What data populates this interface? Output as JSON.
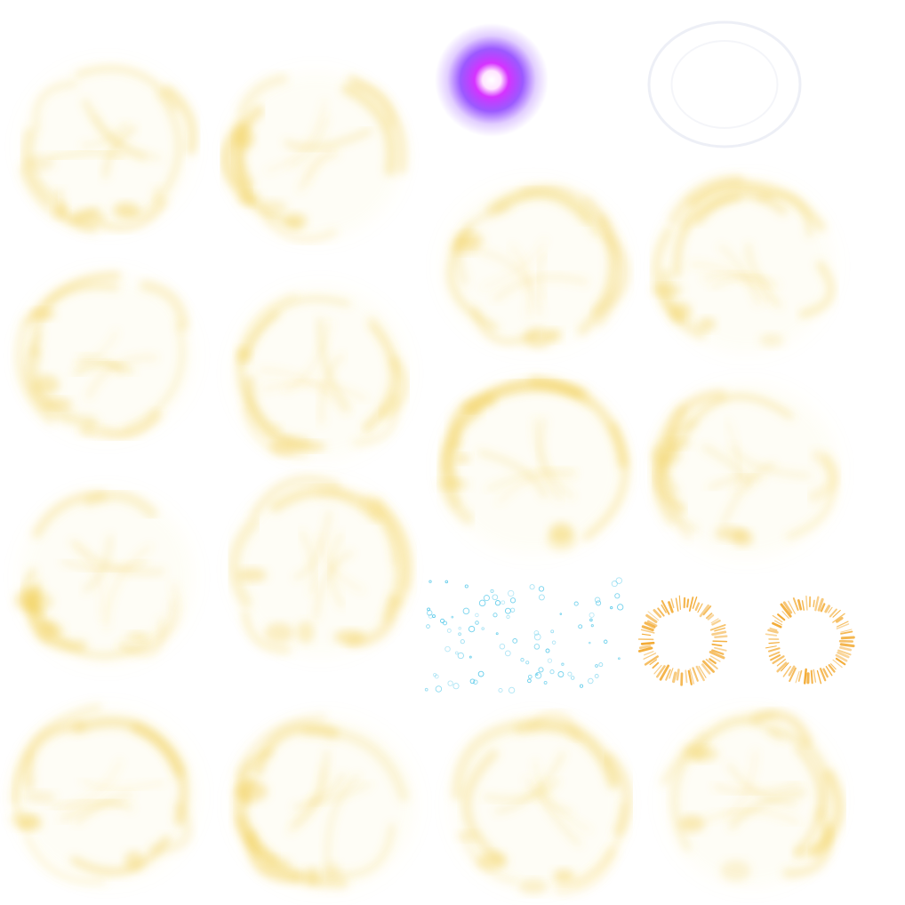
{
  "sheet": {
    "background": "#ffffff",
    "description_kind": "particle-texture-atlas"
  },
  "palette": {
    "smoke_gold": "#f2cf55",
    "smoke_gold_light": "#f8e08a",
    "orb_core": "#ffffff",
    "orb_mid": "#d633ff",
    "orb_outer": "#8a3cff",
    "ring_faint": "#e6e8f2",
    "bubble_blue": "#4fc6e8",
    "burst_orange": "#f2a629"
  },
  "icons": [
    {
      "id": "smoke-puff-icon",
      "kind": "smoke"
    },
    {
      "id": "purple-orb-icon",
      "kind": "glow-orb"
    },
    {
      "id": "faint-ring-icon",
      "kind": "ring"
    },
    {
      "id": "bubble-cluster-icon",
      "kind": "bubbles"
    },
    {
      "id": "spark-burst-icon",
      "kind": "burst"
    }
  ],
  "sprites": [
    {
      "name": "smoke-puff-1",
      "type": "smoke"
    },
    {
      "name": "smoke-puff-2",
      "type": "smoke"
    },
    {
      "name": "purple-orb",
      "type": "orb"
    },
    {
      "name": "faint-ring",
      "type": "ring"
    },
    {
      "name": "smoke-puff-3",
      "type": "smoke"
    },
    {
      "name": "smoke-puff-4",
      "type": "smoke"
    },
    {
      "name": "smoke-puff-5",
      "type": "smoke"
    },
    {
      "name": "smoke-puff-6",
      "type": "smoke"
    },
    {
      "name": "smoke-puff-7",
      "type": "smoke"
    },
    {
      "name": "smoke-puff-8",
      "type": "smoke"
    },
    {
      "name": "smoke-puff-9",
      "type": "smoke"
    },
    {
      "name": "smoke-puff-10",
      "type": "smoke"
    },
    {
      "name": "bubble-cluster",
      "type": "bubbles"
    },
    {
      "name": "spark-burst-1",
      "type": "burst"
    },
    {
      "name": "spark-burst-2",
      "type": "burst"
    },
    {
      "name": "smoke-puff-11",
      "type": "smoke"
    },
    {
      "name": "smoke-puff-12",
      "type": "smoke"
    },
    {
      "name": "smoke-puff-13",
      "type": "smoke"
    },
    {
      "name": "smoke-puff-14",
      "type": "smoke"
    }
  ]
}
